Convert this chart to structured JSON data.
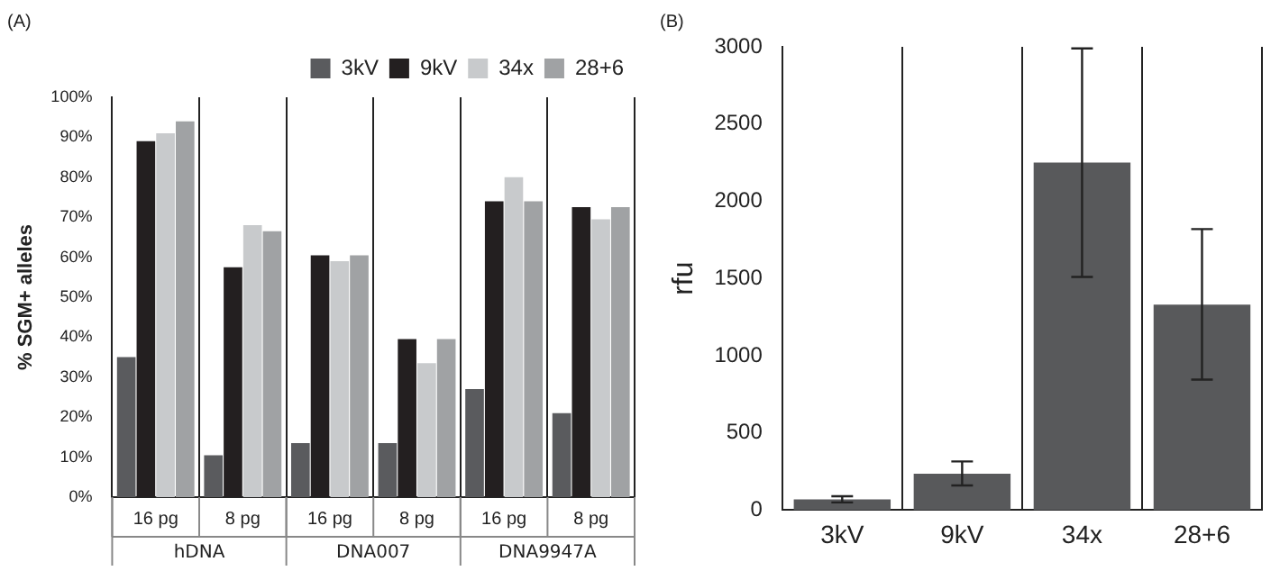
{
  "chart_data": [
    {
      "type": "bar",
      "title": "(A)",
      "ylabel": "% SGM+ alleles",
      "categories": [
        "16 pg",
        "8 pg",
        "16 pg",
        "8 pg",
        "16 pg",
        "8 pg"
      ],
      "annotations": [
        "hDNA",
        "DNA007",
        "DNA9947A"
      ],
      "series": [
        {
          "name": "3kV",
          "color": "#5a5b5e",
          "values": [
            35,
            10.5,
            13.5,
            13.5,
            27,
            21
          ]
        },
        {
          "name": "9kV",
          "color": "#231f20",
          "values": [
            89,
            57.5,
            60.5,
            39.5,
            74,
            72.5
          ]
        },
        {
          "name": "34x",
          "color": "#c8cacc",
          "values": [
            91,
            68,
            59,
            33.5,
            80,
            69.5
          ]
        },
        {
          "name": "28+6",
          "color": "#a0a2a4",
          "values": [
            94,
            66.5,
            60.5,
            39.5,
            74,
            72.5
          ]
        }
      ],
      "ylim": [
        0,
        100
      ],
      "yticks": [
        {
          "value": 0,
          "label": "0%"
        },
        {
          "value": 10,
          "label": "10%"
        },
        {
          "value": 20,
          "label": "20%"
        },
        {
          "value": 30,
          "label": "30%"
        },
        {
          "value": 40,
          "label": "40%"
        },
        {
          "value": 50,
          "label": "50%"
        },
        {
          "value": 60,
          "label": "60%"
        },
        {
          "value": 70,
          "label": "70%"
        },
        {
          "value": 80,
          "label": "80%"
        },
        {
          "value": 90,
          "label": "90%"
        },
        {
          "value": 100,
          "label": "100%"
        }
      ],
      "grid": "x",
      "legend": "top right"
    },
    {
      "type": "bar",
      "title": "(B)",
      "ylabel": "rfu",
      "categories": [
        "3kV",
        "9kV",
        "34x",
        "28+6"
      ],
      "values": [
        70,
        235,
        2250,
        1330
      ],
      "color": "#58595b",
      "errors": [
        20,
        [
          160,
          315
        ],
        [
          1510,
          2990
        ],
        [
          845,
          1820
        ]
      ],
      "ylim": [
        0,
        3000
      ],
      "yticks": [
        0,
        500,
        1000,
        1500,
        2000,
        2500,
        3000
      ],
      "grid": "x"
    }
  ]
}
